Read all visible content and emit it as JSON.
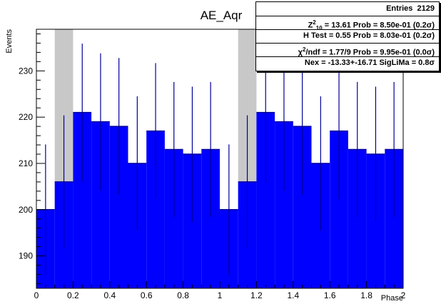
{
  "chart_data": {
    "type": "bar",
    "title": "AE_Aqr",
    "xlabel": "Phase",
    "ylabel": "Events",
    "xlim": [
      0,
      2
    ],
    "ylim": [
      183,
      239
    ],
    "x_ticks": [
      "0",
      "0.2",
      "0.4",
      "0.6",
      "0.8",
      "1",
      "1.2",
      "1.4",
      "1.6",
      "1.8",
      "2"
    ],
    "y_ticks": [
      "190",
      "200",
      "210",
      "220",
      "230"
    ],
    "bin_width": 0.1,
    "x": [
      0.05,
      0.15,
      0.25,
      0.35,
      0.45,
      0.55,
      0.65,
      0.75,
      0.85,
      0.95,
      1.05,
      1.15,
      1.25,
      1.35,
      1.45,
      1.55,
      1.65,
      1.75,
      1.85,
      1.95
    ],
    "values": [
      200,
      206,
      221,
      219,
      218,
      210,
      217,
      213,
      212,
      213,
      200,
      206,
      221,
      219,
      218,
      210,
      217,
      213,
      212,
      213
    ],
    "errors": [
      14.1,
      14.4,
      14.9,
      14.8,
      14.8,
      14.5,
      14.7,
      14.6,
      14.6,
      14.6,
      14.1,
      14.4,
      14.9,
      14.8,
      14.8,
      14.5,
      14.7,
      14.6,
      14.6,
      14.6
    ],
    "shaded_phase_ranges": [
      [
        0.1,
        0.2
      ],
      [
        1.1,
        1.2
      ]
    ],
    "colors": {
      "bars": "#0000ff",
      "error_bars": "#000099",
      "shaded": "#c8c8c8"
    },
    "grid": false
  },
  "stats": {
    "entries_label": "Entries",
    "entries_value": "2129",
    "z2_label": "Z",
    "z2_sup": "2",
    "z2_sub": "10",
    "z2_text": " = 13.61   Prob = 8.50e-01 (0.2σ)",
    "htest_text": "H Test = 0.55   Prob = 8.03e-01 (0.2σ)",
    "chi2_symbol": "χ",
    "chi2_sup": "2",
    "chi2_text": "/ndf = 1.77/9   Prob = 9.95e-01 (0.0σ)",
    "nex_text": "Nex = -13.33+-16.71   SigLiMa = 0.8σ"
  }
}
